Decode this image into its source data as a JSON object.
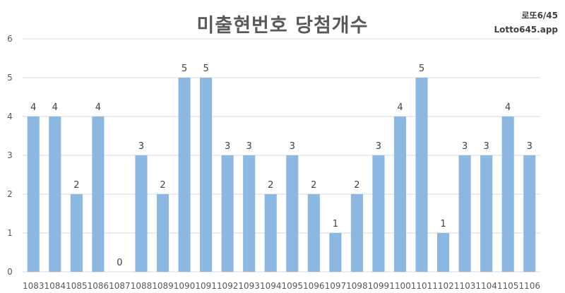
{
  "header": {
    "title": "미출현번호 당첨개수",
    "brand_line1": "로또6/45",
    "brand_line2": "Lotto645.app"
  },
  "colors": {
    "bar": "#8BB8E1",
    "grid": "#D9D9D9",
    "axis_text": "#595959",
    "label_text": "#404040"
  },
  "chart_data": {
    "type": "bar",
    "title": "미출현번호 당첨개수",
    "xlabel": "",
    "ylabel": "",
    "ylim": [
      0,
      6
    ],
    "yticks": [
      0,
      1,
      2,
      3,
      4,
      5,
      6
    ],
    "grid": true,
    "data_labels": true,
    "categories": [
      "1083",
      "1084",
      "1085",
      "1086",
      "1087",
      "1088",
      "1089",
      "1090",
      "1091",
      "1092",
      "1093",
      "1094",
      "1095",
      "1096",
      "1097",
      "1098",
      "1099",
      "1100",
      "1101",
      "1102",
      "1103",
      "1104",
      "1105",
      "1106"
    ],
    "values": [
      4,
      4,
      2,
      4,
      0,
      3,
      2,
      5,
      5,
      3,
      3,
      2,
      3,
      2,
      1,
      2,
      3,
      4,
      5,
      1,
      3,
      3,
      4,
      3
    ]
  }
}
